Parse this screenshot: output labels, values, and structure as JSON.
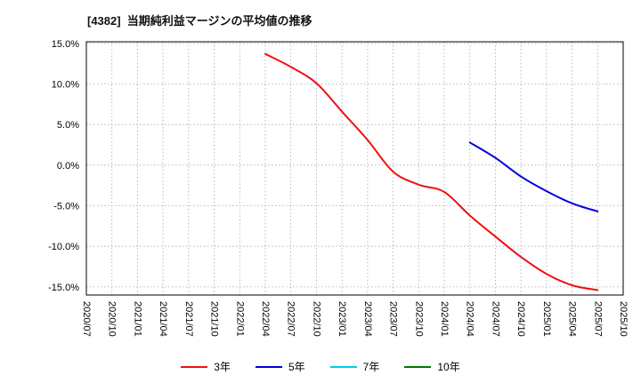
{
  "chart_data": {
    "type": "line",
    "title": "[4382]  当期純利益マージンの平均値の推移",
    "x_labels": [
      "2020/07",
      "2020/10",
      "2021/01",
      "2021/04",
      "2021/07",
      "2021/10",
      "2022/01",
      "2022/04",
      "2022/07",
      "2022/10",
      "2023/01",
      "2023/04",
      "2023/07",
      "2023/10",
      "2024/01",
      "2024/04",
      "2024/07",
      "2024/10",
      "2025/01",
      "2025/04",
      "2025/07",
      "2025/10"
    ],
    "y_ticks": [
      15.0,
      10.0,
      5.0,
      0.0,
      -5.0,
      -10.0,
      -15.0
    ],
    "y_tick_labels": [
      "15.0%",
      "10.0%",
      "5.0%",
      "0.0%",
      "-5.0%",
      "-10.0%",
      "-15.0%"
    ],
    "ylim": [
      -16.0,
      15.2
    ],
    "grid": true,
    "legend_position": "bottom",
    "series": [
      {
        "name": "3年",
        "color": "#ee1111",
        "start_index": 7,
        "values": [
          13.7,
          12.1,
          10.1,
          6.6,
          3.1,
          -0.8,
          -2.4,
          -3.3,
          -6.2,
          -8.8,
          -11.3,
          -13.4,
          -14.8,
          -15.4
        ]
      },
      {
        "name": "5年",
        "color": "#0000dd",
        "start_index": 15,
        "values": [
          2.8,
          0.9,
          -1.4,
          -3.2,
          -4.7,
          -5.7
        ]
      },
      {
        "name": "7年",
        "color": "#00ccee",
        "start_index": null,
        "values": []
      },
      {
        "name": "10年",
        "color": "#007700",
        "start_index": null,
        "values": []
      }
    ]
  }
}
